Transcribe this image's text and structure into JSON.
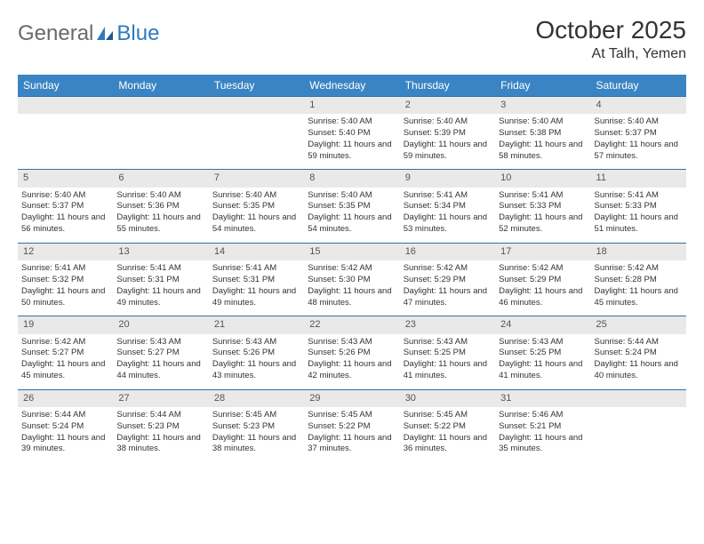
{
  "logo": {
    "part1": "General",
    "part2": "Blue"
  },
  "title": "October 2025",
  "location": "At Talh, Yemen",
  "colors": {
    "header_bg": "#3b84c4",
    "header_text": "#ffffff",
    "daynum_bg": "#e9e9e9",
    "row_border": "#2f6fa8",
    "logo_gray": "#6a6a6a",
    "logo_blue": "#2f7abf"
  },
  "weekdays": [
    "Sunday",
    "Monday",
    "Tuesday",
    "Wednesday",
    "Thursday",
    "Friday",
    "Saturday"
  ],
  "weeks": [
    [
      null,
      null,
      null,
      {
        "d": "1",
        "sr": "Sunrise: 5:40 AM",
        "ss": "Sunset: 5:40 PM",
        "dl": "Daylight: 11 hours and 59 minutes."
      },
      {
        "d": "2",
        "sr": "Sunrise: 5:40 AM",
        "ss": "Sunset: 5:39 PM",
        "dl": "Daylight: 11 hours and 59 minutes."
      },
      {
        "d": "3",
        "sr": "Sunrise: 5:40 AM",
        "ss": "Sunset: 5:38 PM",
        "dl": "Daylight: 11 hours and 58 minutes."
      },
      {
        "d": "4",
        "sr": "Sunrise: 5:40 AM",
        "ss": "Sunset: 5:37 PM",
        "dl": "Daylight: 11 hours and 57 minutes."
      }
    ],
    [
      {
        "d": "5",
        "sr": "Sunrise: 5:40 AM",
        "ss": "Sunset: 5:37 PM",
        "dl": "Daylight: 11 hours and 56 minutes."
      },
      {
        "d": "6",
        "sr": "Sunrise: 5:40 AM",
        "ss": "Sunset: 5:36 PM",
        "dl": "Daylight: 11 hours and 55 minutes."
      },
      {
        "d": "7",
        "sr": "Sunrise: 5:40 AM",
        "ss": "Sunset: 5:35 PM",
        "dl": "Daylight: 11 hours and 54 minutes."
      },
      {
        "d": "8",
        "sr": "Sunrise: 5:40 AM",
        "ss": "Sunset: 5:35 PM",
        "dl": "Daylight: 11 hours and 54 minutes."
      },
      {
        "d": "9",
        "sr": "Sunrise: 5:41 AM",
        "ss": "Sunset: 5:34 PM",
        "dl": "Daylight: 11 hours and 53 minutes."
      },
      {
        "d": "10",
        "sr": "Sunrise: 5:41 AM",
        "ss": "Sunset: 5:33 PM",
        "dl": "Daylight: 11 hours and 52 minutes."
      },
      {
        "d": "11",
        "sr": "Sunrise: 5:41 AM",
        "ss": "Sunset: 5:33 PM",
        "dl": "Daylight: 11 hours and 51 minutes."
      }
    ],
    [
      {
        "d": "12",
        "sr": "Sunrise: 5:41 AM",
        "ss": "Sunset: 5:32 PM",
        "dl": "Daylight: 11 hours and 50 minutes."
      },
      {
        "d": "13",
        "sr": "Sunrise: 5:41 AM",
        "ss": "Sunset: 5:31 PM",
        "dl": "Daylight: 11 hours and 49 minutes."
      },
      {
        "d": "14",
        "sr": "Sunrise: 5:41 AM",
        "ss": "Sunset: 5:31 PM",
        "dl": "Daylight: 11 hours and 49 minutes."
      },
      {
        "d": "15",
        "sr": "Sunrise: 5:42 AM",
        "ss": "Sunset: 5:30 PM",
        "dl": "Daylight: 11 hours and 48 minutes."
      },
      {
        "d": "16",
        "sr": "Sunrise: 5:42 AM",
        "ss": "Sunset: 5:29 PM",
        "dl": "Daylight: 11 hours and 47 minutes."
      },
      {
        "d": "17",
        "sr": "Sunrise: 5:42 AM",
        "ss": "Sunset: 5:29 PM",
        "dl": "Daylight: 11 hours and 46 minutes."
      },
      {
        "d": "18",
        "sr": "Sunrise: 5:42 AM",
        "ss": "Sunset: 5:28 PM",
        "dl": "Daylight: 11 hours and 45 minutes."
      }
    ],
    [
      {
        "d": "19",
        "sr": "Sunrise: 5:42 AM",
        "ss": "Sunset: 5:27 PM",
        "dl": "Daylight: 11 hours and 45 minutes."
      },
      {
        "d": "20",
        "sr": "Sunrise: 5:43 AM",
        "ss": "Sunset: 5:27 PM",
        "dl": "Daylight: 11 hours and 44 minutes."
      },
      {
        "d": "21",
        "sr": "Sunrise: 5:43 AM",
        "ss": "Sunset: 5:26 PM",
        "dl": "Daylight: 11 hours and 43 minutes."
      },
      {
        "d": "22",
        "sr": "Sunrise: 5:43 AM",
        "ss": "Sunset: 5:26 PM",
        "dl": "Daylight: 11 hours and 42 minutes."
      },
      {
        "d": "23",
        "sr": "Sunrise: 5:43 AM",
        "ss": "Sunset: 5:25 PM",
        "dl": "Daylight: 11 hours and 41 minutes."
      },
      {
        "d": "24",
        "sr": "Sunrise: 5:43 AM",
        "ss": "Sunset: 5:25 PM",
        "dl": "Daylight: 11 hours and 41 minutes."
      },
      {
        "d": "25",
        "sr": "Sunrise: 5:44 AM",
        "ss": "Sunset: 5:24 PM",
        "dl": "Daylight: 11 hours and 40 minutes."
      }
    ],
    [
      {
        "d": "26",
        "sr": "Sunrise: 5:44 AM",
        "ss": "Sunset: 5:24 PM",
        "dl": "Daylight: 11 hours and 39 minutes."
      },
      {
        "d": "27",
        "sr": "Sunrise: 5:44 AM",
        "ss": "Sunset: 5:23 PM",
        "dl": "Daylight: 11 hours and 38 minutes."
      },
      {
        "d": "28",
        "sr": "Sunrise: 5:45 AM",
        "ss": "Sunset: 5:23 PM",
        "dl": "Daylight: 11 hours and 38 minutes."
      },
      {
        "d": "29",
        "sr": "Sunrise: 5:45 AM",
        "ss": "Sunset: 5:22 PM",
        "dl": "Daylight: 11 hours and 37 minutes."
      },
      {
        "d": "30",
        "sr": "Sunrise: 5:45 AM",
        "ss": "Sunset: 5:22 PM",
        "dl": "Daylight: 11 hours and 36 minutes."
      },
      {
        "d": "31",
        "sr": "Sunrise: 5:46 AM",
        "ss": "Sunset: 5:21 PM",
        "dl": "Daylight: 11 hours and 35 minutes."
      },
      null
    ]
  ]
}
